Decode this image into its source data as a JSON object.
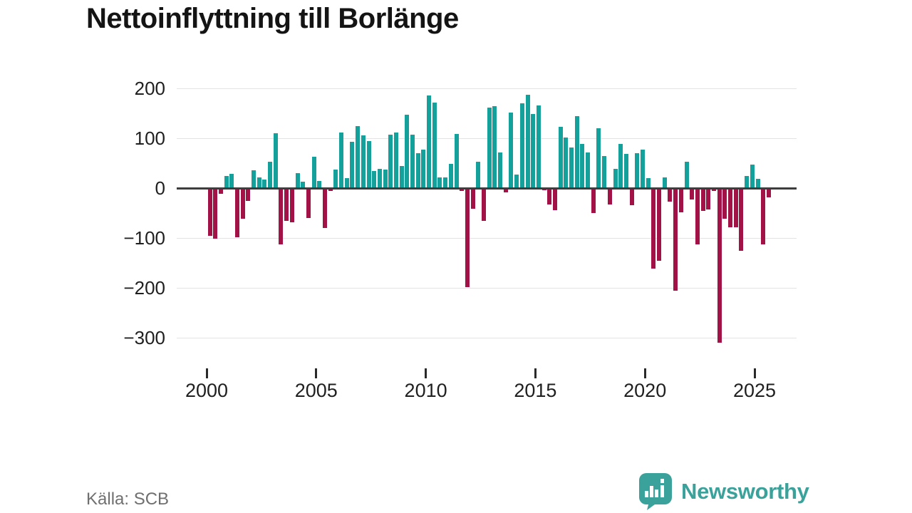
{
  "title": "Nettoinflyttning till Borlänge",
  "source": "Källa: SCB",
  "branding": {
    "logo_text": "Newsworthy",
    "logo_icon": "bar-chart-speech-bubble",
    "brand_color": "#3aa29a"
  },
  "chart_data": {
    "type": "bar",
    "title": "Nettoinflyttning till Borlänge",
    "frequency": "quarterly",
    "period_start": "2000 Q1",
    "period_end": "2025 Q3",
    "values": [
      -95,
      -101,
      -11,
      25,
      28,
      -98,
      -62,
      -26,
      36,
      21,
      17,
      53,
      110,
      -113,
      -66,
      -68,
      30,
      13,
      -60,
      63,
      14,
      -80,
      -6,
      37,
      112,
      20,
      93,
      125,
      106,
      95,
      35,
      39,
      37,
      107,
      111,
      44,
      147,
      107,
      70,
      77,
      186,
      172,
      22,
      21,
      48,
      108,
      -6,
      -198,
      -42,
      53,
      -66,
      161,
      164,
      71,
      -8,
      151,
      27,
      170,
      187,
      148,
      166,
      -4,
      -33,
      -44,
      123,
      101,
      82,
      145,
      88,
      72,
      -50,
      120,
      64,
      -33,
      38,
      89,
      68,
      -34,
      70,
      77,
      20,
      -161,
      -146,
      22,
      -27,
      -205,
      -48,
      53,
      -23,
      -113,
      -45,
      -43,
      -6,
      -310,
      -62,
      -79,
      -79,
      -125,
      24,
      47,
      19,
      -113,
      -19
    ],
    "x_tick_years": [
      2000,
      2005,
      2010,
      2015,
      2020,
      2025
    ],
    "y_ticks": [
      200,
      100,
      0,
      -100,
      -200,
      -300
    ],
    "ylim": [
      -330,
      210
    ],
    "grid": true,
    "legend": "none",
    "positive_color": "#14a09b",
    "negative_color": "#a31246",
    "grid_color": "#e3e3e3",
    "zero_line_color": "#3d3d3d",
    "axis_text_color": "#1f1f1f"
  }
}
